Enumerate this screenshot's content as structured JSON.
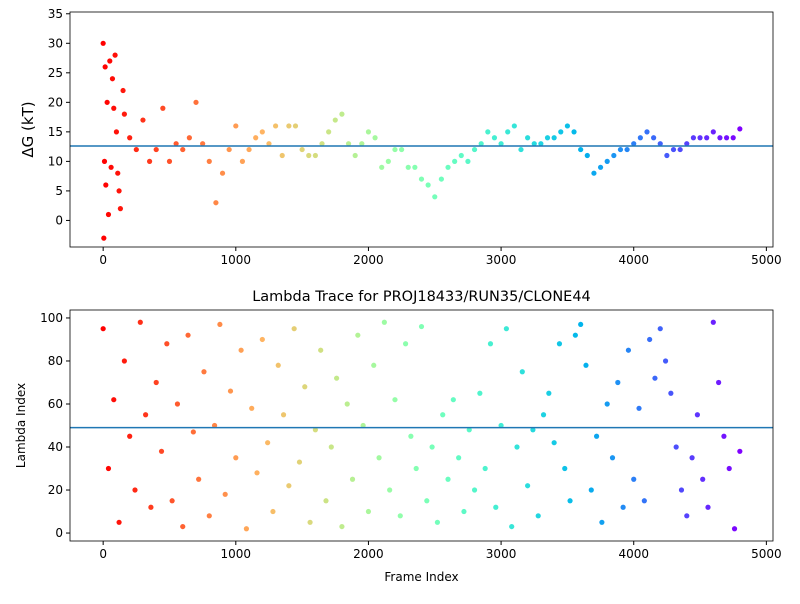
{
  "chart_data": [
    {
      "type": "scatter",
      "ylabel": "ΔG (kT)",
      "colormap": "rainbow_r",
      "hline": 12.6,
      "hline_color": "#1f77b4",
      "x": [
        0,
        5,
        10,
        15,
        20,
        30,
        40,
        50,
        60,
        70,
        80,
        90,
        100,
        110,
        120,
        130,
        150,
        160,
        200,
        250,
        300,
        350,
        400,
        450,
        500,
        550,
        600,
        650,
        700,
        750,
        800,
        850,
        900,
        950,
        1000,
        1050,
        1100,
        1150,
        1200,
        1250,
        1300,
        1350,
        1400,
        1450,
        1500,
        1550,
        1600,
        1650,
        1700,
        1750,
        1800,
        1850,
        1900,
        1950,
        2000,
        2050,
        2100,
        2150,
        2200,
        2250,
        2300,
        2350,
        2400,
        2450,
        2500,
        2550,
        2600,
        2650,
        2700,
        2750,
        2800,
        2850,
        2900,
        2950,
        3000,
        3050,
        3100,
        3150,
        3200,
        3250,
        3300,
        3350,
        3400,
        3450,
        3500,
        3550,
        3600,
        3650,
        3700,
        3750,
        3800,
        3850,
        3900,
        3950,
        4000,
        4050,
        4100,
        4150,
        4200,
        4250,
        4300,
        4350,
        4400,
        4450,
        4500,
        4550,
        4600,
        4650,
        4700,
        4750,
        4800
      ],
      "values": [
        30,
        -3,
        10,
        26,
        6,
        20,
        1,
        27,
        9,
        24,
        19,
        28,
        15,
        8,
        5,
        2,
        22,
        18,
        14,
        12,
        17,
        10,
        12,
        19,
        10,
        13,
        12,
        14,
        20,
        13,
        10,
        3,
        8,
        12,
        16,
        10,
        12,
        14,
        15,
        13,
        16,
        11,
        16,
        16,
        12,
        11,
        11,
        13,
        15,
        17,
        18,
        13,
        11,
        13,
        15,
        14,
        9,
        10,
        12,
        12,
        9,
        9,
        7,
        6,
        4,
        7,
        9,
        10,
        11,
        10,
        12,
        13,
        15,
        14,
        13,
        15,
        16,
        12,
        14,
        13,
        13,
        14,
        14,
        15,
        16,
        15,
        12,
        11,
        8,
        9,
        10,
        11,
        12,
        12,
        13,
        14,
        15,
        14,
        13,
        11,
        12,
        12,
        13,
        14,
        14,
        14,
        15,
        14,
        14,
        14,
        15.5
      ],
      "xlim": [
        -250,
        5050
      ],
      "ylim": [
        -4.5,
        35.3
      ],
      "xticks": [
        0,
        1000,
        2000,
        3000,
        4000,
        5000
      ],
      "yticks": [
        0,
        5,
        10,
        15,
        20,
        25,
        30,
        35
      ]
    },
    {
      "type": "scatter",
      "title": "Lambda Trace for PROJ18433/RUN35/CLONE44",
      "xlabel": "Frame Index",
      "ylabel": "Lambda Index",
      "colormap": "rainbow_r",
      "hline": 49,
      "hline_color": "#1f77b4",
      "x": [
        0,
        40,
        80,
        120,
        160,
        200,
        240,
        280,
        320,
        360,
        400,
        440,
        480,
        520,
        560,
        600,
        640,
        680,
        720,
        760,
        800,
        840,
        880,
        920,
        960,
        1000,
        1040,
        1080,
        1120,
        1160,
        1200,
        1240,
        1280,
        1320,
        1360,
        1400,
        1440,
        1480,
        1520,
        1560,
        1600,
        1640,
        1680,
        1720,
        1760,
        1800,
        1840,
        1880,
        1920,
        1960,
        2000,
        2040,
        2080,
        2120,
        2160,
        2200,
        2240,
        2280,
        2320,
        2360,
        2400,
        2440,
        2480,
        2520,
        2560,
        2600,
        2640,
        2680,
        2720,
        2760,
        2800,
        2840,
        2880,
        2920,
        2960,
        3000,
        3040,
        3080,
        3120,
        3160,
        3200,
        3240,
        3280,
        3320,
        3360,
        3400,
        3440,
        3480,
        3520,
        3560,
        3600,
        3640,
        3680,
        3720,
        3760,
        3800,
        3840,
        3880,
        3920,
        3960,
        4000,
        4040,
        4080,
        4120,
        4160,
        4200,
        4240,
        4280,
        4320,
        4360,
        4400,
        4440,
        4480,
        4520,
        4560,
        4600,
        4640,
        4680,
        4720,
        4760,
        4800
      ],
      "values": [
        95,
        30,
        62,
        5,
        80,
        45,
        20,
        98,
        55,
        12,
        70,
        38,
        88,
        15,
        60,
        3,
        92,
        47,
        25,
        75,
        8,
        50,
        97,
        18,
        66,
        35,
        85,
        2,
        58,
        28,
        90,
        42,
        10,
        78,
        55,
        22,
        95,
        33,
        68,
        5,
        48,
        85,
        15,
        40,
        72,
        3,
        60,
        25,
        92,
        50,
        10,
        78,
        35,
        98,
        20,
        62,
        8,
        88,
        45,
        30,
        96,
        15,
        40,
        5,
        55,
        25,
        62,
        35,
        10,
        48,
        20,
        65,
        30,
        88,
        12,
        50,
        95,
        3,
        40,
        75,
        22,
        48,
        8,
        55,
        65,
        42,
        88,
        30,
        15,
        92,
        97,
        78,
        20,
        45,
        5,
        60,
        35,
        70,
        12,
        85,
        25,
        58,
        15,
        90,
        72,
        95,
        80,
        65,
        40,
        20,
        8,
        35,
        55,
        25,
        12,
        98,
        70,
        45,
        30,
        2,
        38
      ],
      "xlim": [
        -250,
        5050
      ],
      "ylim": [
        -3.7,
        103.7
      ],
      "xticks": [
        0,
        1000,
        2000,
        3000,
        4000,
        5000
      ],
      "yticks": [
        0,
        20,
        40,
        60,
        80,
        100
      ]
    }
  ]
}
